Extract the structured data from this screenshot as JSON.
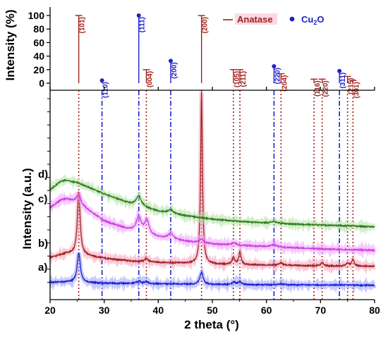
{
  "chart_data": {
    "type": "line",
    "xlabel": "2 theta (°)",
    "ylabel_bottom": "Intensity (a.u.)",
    "ylabel_top": "Intensity (%)",
    "xlim": [
      20,
      80
    ],
    "x_ticks": [
      20,
      30,
      40,
      50,
      60,
      70,
      80
    ],
    "top_ylim": [
      0,
      100
    ],
    "top_y_ticks": [
      0,
      20,
      40,
      60,
      80,
      100
    ],
    "legend": {
      "placement": "top-right",
      "entries": [
        {
          "name": "Anatase",
          "color": "#a0221c",
          "marker": "dash"
        },
        {
          "name": "Cu",
          "sub": "2",
          "suffix": "O",
          "color": "#1e22c8",
          "marker": "dot"
        }
      ]
    },
    "reference_peaks": {
      "anatase": {
        "color": "#a0221c",
        "peaks": [
          {
            "x": 25.3,
            "intensity": 100,
            "hkl": "(101)"
          },
          {
            "x": 37.8,
            "intensity": 20,
            "hkl": "(004)"
          },
          {
            "x": 48.0,
            "intensity": 100,
            "hkl": "(200)"
          },
          {
            "x": 53.9,
            "intensity": 20,
            "hkl": "(105)"
          },
          {
            "x": 55.1,
            "intensity": 20,
            "hkl": "(211)"
          },
          {
            "x": 62.7,
            "intensity": 14,
            "hkl": "(204)"
          },
          {
            "x": 68.8,
            "intensity": 6,
            "hkl": "(116)"
          },
          {
            "x": 70.3,
            "intensity": 6,
            "hkl": "(220)"
          },
          {
            "x": 75.0,
            "intensity": 10,
            "hkl": "(215)"
          },
          {
            "x": 76.0,
            "intensity": 4,
            "hkl": "(301)"
          }
        ]
      },
      "cu2o": {
        "color": "#1e22c8",
        "peaks": [
          {
            "x": 29.6,
            "intensity": 4,
            "hkl": "(110)"
          },
          {
            "x": 36.4,
            "intensity": 100,
            "hkl": "(111)"
          },
          {
            "x": 42.3,
            "intensity": 33,
            "hkl": "(200)"
          },
          {
            "x": 61.4,
            "intensity": 25,
            "hkl": "(220)"
          },
          {
            "x": 73.5,
            "intensity": 18,
            "hkl": "(311)"
          }
        ]
      }
    },
    "series": [
      {
        "label": "a)",
        "color": "#1e22c8",
        "highlight": "#9aa0ff",
        "baseline": [
          [
            20,
            0.3
          ],
          [
            23,
            0.31
          ],
          [
            25,
            0.3
          ],
          [
            30,
            0.26
          ],
          [
            40,
            0.23
          ],
          [
            50,
            0.2
          ],
          [
            60,
            0.19
          ],
          [
            70,
            0.18
          ],
          [
            80,
            0.17
          ]
        ],
        "peaks": [
          {
            "x": 25.3,
            "height": 1.3,
            "width": 0.35
          },
          {
            "x": 36.4,
            "height": 0.1,
            "width": 0.5
          },
          {
            "x": 37.8,
            "height": 0.08,
            "width": 0.4
          },
          {
            "x": 48.0,
            "height": 0.55,
            "width": 0.35
          },
          {
            "x": 54.0,
            "height": 0.1,
            "width": 0.4
          },
          {
            "x": 55.1,
            "height": 0.12,
            "width": 0.35
          },
          {
            "x": 62.7,
            "height": 0.05,
            "width": 0.4
          }
        ]
      },
      {
        "label": "b)",
        "color": "#a0221c",
        "highlight": "#f4a0c0",
        "baseline": [
          [
            20,
            1.4
          ],
          [
            23,
            1.58
          ],
          [
            25,
            1.55
          ],
          [
            30,
            1.36
          ],
          [
            35,
            1.24
          ],
          [
            40,
            1.18
          ],
          [
            50,
            1.1
          ],
          [
            60,
            1.06
          ],
          [
            70,
            1.03
          ],
          [
            80,
            1.01
          ]
        ],
        "peaks": [
          {
            "x": 25.3,
            "height": 2.8,
            "width": 0.3
          },
          {
            "x": 37.8,
            "height": 0.15,
            "width": 0.35
          },
          {
            "x": 48.0,
            "height": 7.6,
            "width": 0.2
          },
          {
            "x": 53.9,
            "height": 0.3,
            "width": 0.3
          },
          {
            "x": 55.1,
            "height": 0.55,
            "width": 0.25
          },
          {
            "x": 62.7,
            "height": 0.12,
            "width": 0.35
          },
          {
            "x": 70.3,
            "height": 0.14,
            "width": 0.3
          },
          {
            "x": 75.0,
            "height": 0.12,
            "width": 0.3
          },
          {
            "x": 76.0,
            "height": 0.3,
            "width": 0.25
          }
        ]
      },
      {
        "label": "c)",
        "color": "#d040e0",
        "highlight": "#f0a0ff",
        "baseline": [
          [
            20,
            3.6
          ],
          [
            22,
            3.95
          ],
          [
            23,
            4.0
          ],
          [
            25,
            3.85
          ],
          [
            28,
            3.35
          ],
          [
            30,
            3.02
          ],
          [
            35,
            2.6
          ],
          [
            40,
            2.3
          ],
          [
            45,
            2.12
          ],
          [
            50,
            2.0
          ],
          [
            60,
            1.88
          ],
          [
            70,
            1.78
          ],
          [
            80,
            1.72
          ]
        ],
        "peaks": [
          {
            "x": 25.3,
            "height": 0.4,
            "width": 0.45
          },
          {
            "x": 36.4,
            "height": 0.7,
            "width": 0.55
          },
          {
            "x": 37.9,
            "height": 0.6,
            "width": 0.45
          },
          {
            "x": 42.3,
            "height": 0.25,
            "width": 0.6
          },
          {
            "x": 48.0,
            "height": 0.18,
            "width": 0.4
          },
          {
            "x": 54.0,
            "height": 0.1,
            "width": 0.5
          },
          {
            "x": 61.4,
            "height": 0.1,
            "width": 0.6
          }
        ]
      },
      {
        "label": "d)",
        "color": "#2e7d1e",
        "highlight": "#b0e0a0",
        "baseline": [
          [
            20,
            4.4
          ],
          [
            22,
            4.78
          ],
          [
            23,
            4.82
          ],
          [
            25,
            4.72
          ],
          [
            28,
            4.42
          ],
          [
            30,
            4.22
          ],
          [
            33,
            3.95
          ],
          [
            35,
            3.78
          ],
          [
            40,
            3.45
          ],
          [
            45,
            3.25
          ],
          [
            50,
            3.1
          ],
          [
            55,
            3.0
          ],
          [
            60,
            2.93
          ],
          [
            65,
            2.88
          ],
          [
            70,
            2.84
          ],
          [
            75,
            2.8
          ],
          [
            80,
            2.76
          ]
        ],
        "peaks": [
          {
            "x": 36.4,
            "height": 0.45,
            "width": 0.55
          },
          {
            "x": 42.3,
            "height": 0.15,
            "width": 0.6
          },
          {
            "x": 61.4,
            "height": 0.08,
            "width": 0.6
          }
        ]
      }
    ],
    "bottom_ylim": [
      0,
      10
    ]
  }
}
